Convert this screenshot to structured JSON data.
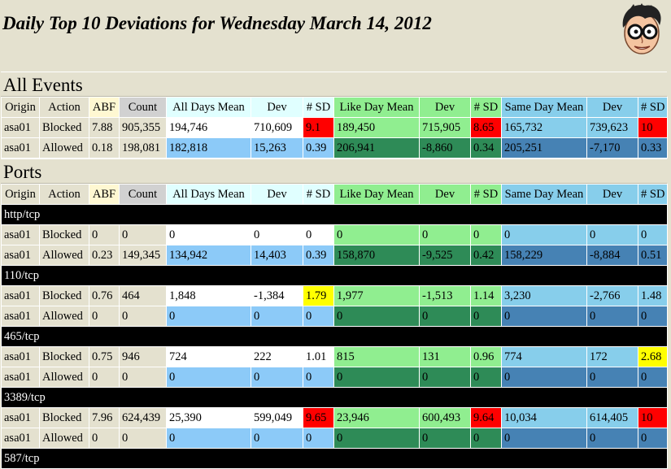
{
  "title": "Daily Top 10 Deviations for Wednesday March 14, 2012",
  "headers": [
    "Origin",
    "Action",
    "ABF",
    "Count",
    "All Days Mean",
    "Dev",
    "# SD",
    "Like Day Mean",
    "Dev",
    "# SD",
    "Same Day Mean",
    "Dev",
    "# SD"
  ],
  "colors": {
    "alert_high": "#ff0000",
    "alert_warn": "#ffff00",
    "group_bar": "#000000"
  },
  "sections": [
    {
      "title": "All Events",
      "groups": [
        {
          "label": "",
          "rows": [
            {
              "origin": "asa01",
              "action": "Blocked",
              "abf": "7.88",
              "count": "905,355",
              "all_mean": "194,746",
              "all_dev": "710,609",
              "all_sd": "9.1",
              "all_flag": "red",
              "like_mean": "189,450",
              "like_dev": "715,905",
              "like_sd": "8.65",
              "like_flag": "red",
              "same_mean": "165,732",
              "same_dev": "739,623",
              "same_sd": "10",
              "same_flag": "red"
            },
            {
              "origin": "asa01",
              "action": "Allowed",
              "abf": "0.18",
              "count": "198,081",
              "all_mean": "182,818",
              "all_dev": "15,263",
              "all_sd": "0.39",
              "all_flag": "",
              "like_mean": "206,941",
              "like_dev": "-8,860",
              "like_sd": "0.34",
              "like_flag": "",
              "same_mean": "205,251",
              "same_dev": "-7,170",
              "same_sd": "0.33",
              "same_flag": ""
            }
          ]
        }
      ]
    },
    {
      "title": "Ports",
      "groups": [
        {
          "label": "http/tcp",
          "rows": [
            {
              "origin": "asa01",
              "action": "Blocked",
              "abf": "0",
              "count": "0",
              "all_mean": "0",
              "all_dev": "0",
              "all_sd": "0",
              "all_flag": "",
              "like_mean": "0",
              "like_dev": "0",
              "like_sd": "0",
              "like_flag": "",
              "same_mean": "0",
              "same_dev": "0",
              "same_sd": "0",
              "same_flag": ""
            },
            {
              "origin": "asa01",
              "action": "Allowed",
              "abf": "0.23",
              "count": "149,345",
              "all_mean": "134,942",
              "all_dev": "14,403",
              "all_sd": "0.39",
              "all_flag": "",
              "like_mean": "158,870",
              "like_dev": "-9,525",
              "like_sd": "0.42",
              "like_flag": "",
              "same_mean": "158,229",
              "same_dev": "-8,884",
              "same_sd": "0.51",
              "same_flag": ""
            }
          ]
        },
        {
          "label": "110/tcp",
          "rows": [
            {
              "origin": "asa01",
              "action": "Blocked",
              "abf": "0.76",
              "count": "464",
              "all_mean": "1,848",
              "all_dev": "-1,384",
              "all_sd": "1.79",
              "all_flag": "yellow",
              "like_mean": "1,977",
              "like_dev": "-1,513",
              "like_sd": "1.14",
              "like_flag": "",
              "same_mean": "3,230",
              "same_dev": "-2,766",
              "same_sd": "1.48",
              "same_flag": ""
            },
            {
              "origin": "asa01",
              "action": "Allowed",
              "abf": "0",
              "count": "0",
              "all_mean": "0",
              "all_dev": "0",
              "all_sd": "0",
              "all_flag": "",
              "like_mean": "0",
              "like_dev": "0",
              "like_sd": "0",
              "like_flag": "",
              "same_mean": "0",
              "same_dev": "0",
              "same_sd": "0",
              "same_flag": ""
            }
          ]
        },
        {
          "label": "465/tcp",
          "rows": [
            {
              "origin": "asa01",
              "action": "Blocked",
              "abf": "0.75",
              "count": "946",
              "all_mean": "724",
              "all_dev": "222",
              "all_sd": "1.01",
              "all_flag": "",
              "like_mean": "815",
              "like_dev": "131",
              "like_sd": "0.96",
              "like_flag": "",
              "same_mean": "774",
              "same_dev": "172",
              "same_sd": "2.68",
              "same_flag": "yellow"
            },
            {
              "origin": "asa01",
              "action": "Allowed",
              "abf": "0",
              "count": "0",
              "all_mean": "0",
              "all_dev": "0",
              "all_sd": "0",
              "all_flag": "",
              "like_mean": "0",
              "like_dev": "0",
              "like_sd": "0",
              "like_flag": "",
              "same_mean": "0",
              "same_dev": "0",
              "same_sd": "0",
              "same_flag": ""
            }
          ]
        },
        {
          "label": "3389/tcp",
          "rows": [
            {
              "origin": "asa01",
              "action": "Blocked",
              "abf": "7.96",
              "count": "624,439",
              "all_mean": "25,390",
              "all_dev": "599,049",
              "all_sd": "9.65",
              "all_flag": "red",
              "like_mean": "23,946",
              "like_dev": "600,493",
              "like_sd": "9.64",
              "like_flag": "red",
              "same_mean": "10,034",
              "same_dev": "614,405",
              "same_sd": "10",
              "same_flag": "red"
            },
            {
              "origin": "asa01",
              "action": "Allowed",
              "abf": "0",
              "count": "0",
              "all_mean": "0",
              "all_dev": "0",
              "all_sd": "0",
              "all_flag": "",
              "like_mean": "0",
              "like_dev": "0",
              "like_sd": "0",
              "like_flag": "",
              "same_mean": "0",
              "same_dev": "0",
              "same_sd": "0",
              "same_flag": ""
            }
          ]
        },
        {
          "label": "587/tcp",
          "rows": []
        }
      ]
    }
  ]
}
